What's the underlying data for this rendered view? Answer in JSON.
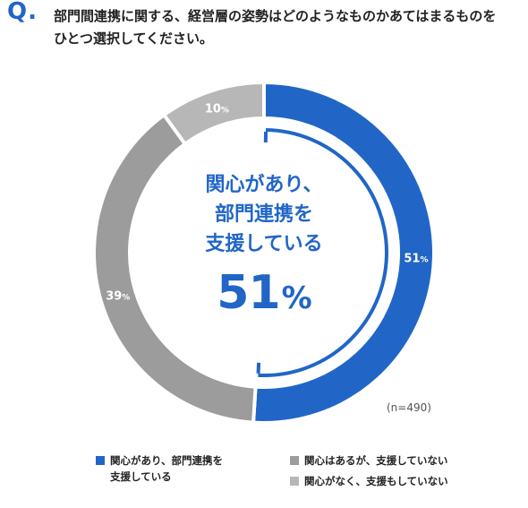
{
  "question": {
    "mark": "Q.",
    "lines": [
      "部門間連携に関する、経営層の姿勢はどのようなものかあてはまるものを",
      "ひとつ選択してください。"
    ]
  },
  "center": {
    "label_lines": [
      "関心があり、",
      "部門連携を",
      "支援している"
    ],
    "value": "51",
    "unit": "%"
  },
  "sample": "(n=490)",
  "colors": {
    "blue": "#2166c7",
    "gray_dark": "#9c9c9c",
    "gray_light": "#b7b7b7"
  },
  "legend": [
    {
      "lines": [
        "関心があり、部門連携を",
        "支援している"
      ]
    },
    {
      "lines": [
        "関心はあるが、支援していない"
      ]
    },
    {
      "lines": [
        "関心がなく、支援もしていない"
      ]
    }
  ],
  "chart_data": {
    "type": "pie",
    "categories": [
      "関心があり、部門連携を支援している",
      "関心はあるが、支援していない",
      "関心がなく、支援もしていない"
    ],
    "values": [
      51,
      39,
      10
    ],
    "labels": [
      "51",
      "39",
      "10"
    ],
    "unit": "%",
    "legend_position": "bottom"
  }
}
